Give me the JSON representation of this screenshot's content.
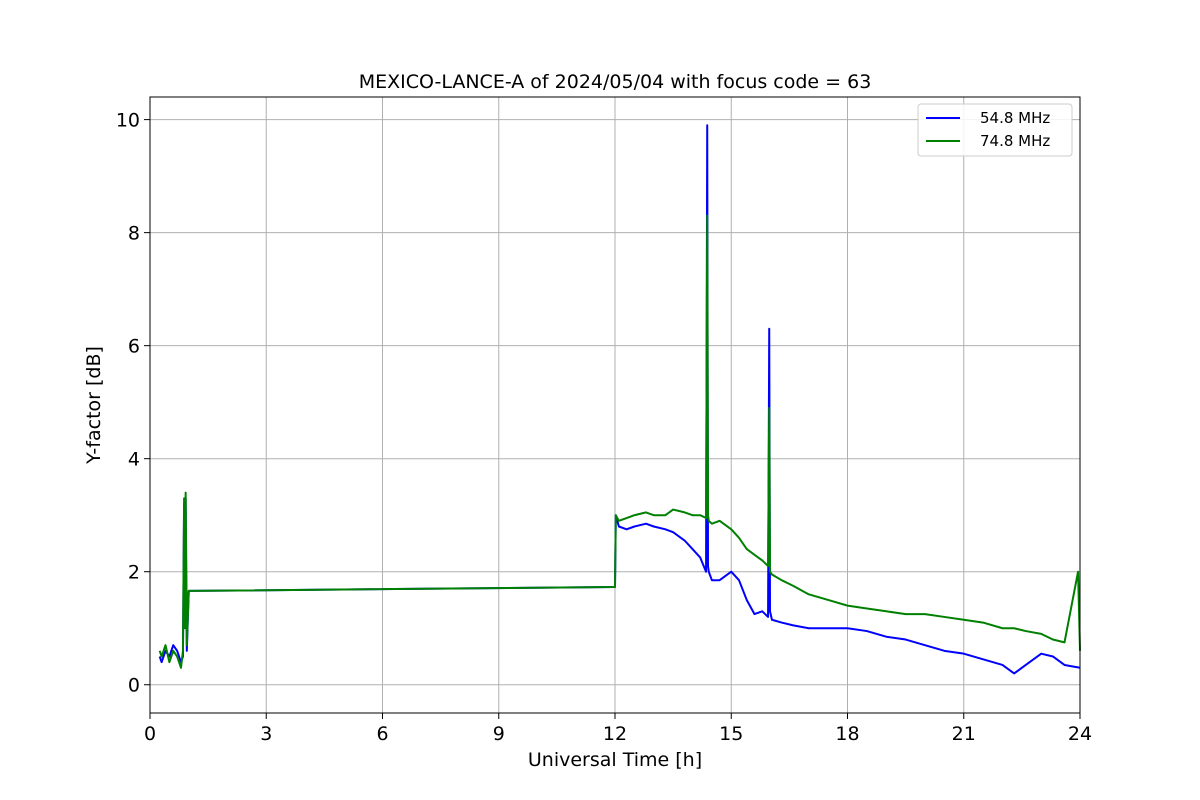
{
  "chart_data": {
    "type": "line",
    "title": "MEXICO-LANCE-A of 2024/05/04 with focus code = 63",
    "xlabel": "Universal Time [h]",
    "ylabel": "Y-factor [dB]",
    "xlim": [
      0,
      24
    ],
    "ylim": [
      -0.5,
      10.4
    ],
    "xticks": [
      0,
      3,
      6,
      9,
      12,
      15,
      18,
      21,
      24
    ],
    "yticks": [
      0,
      2,
      4,
      6,
      8,
      10
    ],
    "grid": true,
    "legend_position": "top-right",
    "series": [
      {
        "name": "54.8 MHz",
        "color": "#0000ff",
        "x": [
          0.25,
          0.3,
          0.4,
          0.5,
          0.6,
          0.7,
          0.8,
          0.85,
          0.88,
          0.9,
          0.92,
          0.95,
          1.0,
          12.0,
          12.02,
          12.1,
          12.3,
          12.5,
          12.8,
          13.0,
          13.3,
          13.5,
          13.8,
          14.0,
          14.2,
          14.35,
          14.38,
          14.4,
          14.42,
          14.5,
          14.7,
          15.0,
          15.2,
          15.4,
          15.6,
          15.8,
          15.95,
          15.98,
          16.0,
          16.05,
          16.3,
          16.6,
          17.0,
          17.5,
          18.0,
          18.5,
          19.0,
          19.5,
          20.0,
          20.5,
          21.0,
          21.5,
          22.0,
          22.3,
          22.6,
          23.0,
          23.3,
          23.6,
          24.0
        ],
        "y": [
          0.5,
          0.4,
          0.6,
          0.5,
          0.7,
          0.6,
          0.4,
          0.5,
          3.2,
          1.2,
          3.3,
          0.6,
          1.66,
          1.73,
          3.0,
          2.8,
          2.75,
          2.8,
          2.85,
          2.8,
          2.75,
          2.7,
          2.55,
          2.4,
          2.25,
          2.0,
          9.9,
          2.1,
          2.0,
          1.85,
          1.85,
          2.0,
          1.85,
          1.5,
          1.25,
          1.3,
          1.2,
          6.3,
          1.3,
          1.15,
          1.1,
          1.05,
          1.0,
          1.0,
          1.0,
          0.95,
          0.85,
          0.8,
          0.7,
          0.6,
          0.55,
          0.45,
          0.35,
          0.2,
          0.35,
          0.55,
          0.5,
          0.35,
          0.3
        ]
      },
      {
        "name": "74.8 MHz",
        "color": "#008000",
        "x": [
          0.25,
          0.3,
          0.4,
          0.5,
          0.6,
          0.7,
          0.8,
          0.85,
          0.88,
          0.9,
          0.92,
          0.95,
          1.0,
          12.0,
          12.02,
          12.1,
          12.3,
          12.5,
          12.8,
          13.0,
          13.3,
          13.5,
          13.8,
          14.0,
          14.2,
          14.35,
          14.38,
          14.4,
          14.42,
          14.5,
          14.7,
          15.0,
          15.2,
          15.4,
          15.6,
          15.8,
          15.95,
          15.98,
          16.0,
          16.05,
          16.3,
          16.6,
          17.0,
          17.5,
          18.0,
          18.5,
          19.0,
          19.5,
          20.0,
          20.5,
          21.0,
          21.5,
          22.0,
          22.3,
          22.6,
          23.0,
          23.3,
          23.6,
          23.95,
          24.0
        ],
        "y": [
          0.6,
          0.5,
          0.7,
          0.4,
          0.6,
          0.5,
          0.3,
          0.6,
          3.3,
          1.0,
          3.4,
          0.7,
          1.66,
          1.73,
          3.0,
          2.9,
          2.95,
          3.0,
          3.05,
          3.0,
          3.0,
          3.1,
          3.05,
          3.0,
          3.0,
          2.95,
          8.3,
          3.0,
          2.9,
          2.85,
          2.9,
          2.75,
          2.6,
          2.4,
          2.3,
          2.2,
          2.1,
          4.9,
          2.0,
          1.95,
          1.85,
          1.75,
          1.6,
          1.5,
          1.4,
          1.35,
          1.3,
          1.25,
          1.25,
          1.2,
          1.15,
          1.1,
          1.0,
          1.0,
          0.95,
          0.9,
          0.8,
          0.75,
          2.0,
          0.6
        ]
      }
    ]
  }
}
